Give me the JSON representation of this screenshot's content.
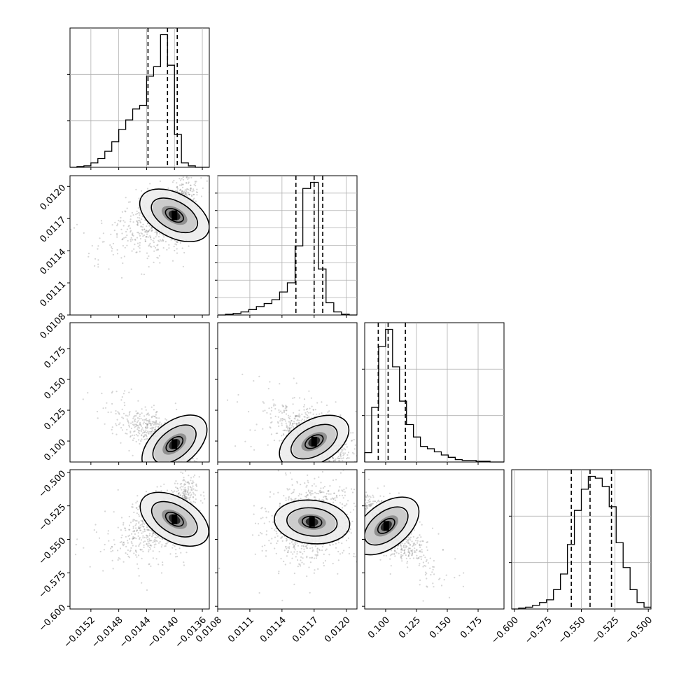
{
  "chart_data": {
    "type": "corner",
    "parameters": [
      {
        "range": [
          -0.0155,
          -0.0135
        ],
        "ticks": [
          -0.0152,
          -0.0148,
          -0.0144,
          -0.014,
          -0.0136
        ],
        "tick_labels": [
          "−0.0152",
          "−0.0148",
          "−0.0144",
          "−0.0140",
          "−0.0136"
        ],
        "quantiles": [
          -0.01438,
          -0.0141,
          -0.01396
        ]
      },
      {
        "range": [
          0.0108,
          0.0121
        ],
        "ticks": [
          0.0108,
          0.0111,
          0.0114,
          0.0117,
          0.012
        ],
        "tick_labels": [
          "0.0108",
          "0.0111",
          "0.0114",
          "0.0117",
          "0.0120"
        ],
        "quantiles": [
          0.01153,
          0.0117,
          0.01178
        ]
      },
      {
        "range": [
          0.083,
          0.196
        ],
        "ticks": [
          0.1,
          0.125,
          0.15,
          0.175
        ],
        "tick_labels": [
          "0.100",
          "0.125",
          "0.150",
          "0.175"
        ],
        "quantiles": [
          0.094,
          0.102,
          0.116
        ]
      },
      {
        "range": [
          -0.602,
          -0.498
        ],
        "ticks": [
          -0.6,
          -0.575,
          -0.55,
          -0.525,
          -0.5
        ],
        "tick_labels": [
          "−0.600",
          "−0.575",
          "−0.550",
          "−0.525",
          "−0.500"
        ],
        "quantiles": [
          -0.5575,
          -0.5435,
          -0.5275
        ]
      }
    ],
    "y_tick_labels_rows": [
      [
        "0.0108",
        "0.0111",
        "0.0114",
        "0.0117",
        "0.0120"
      ],
      [
        "0.100",
        "0.125",
        "0.150",
        "0.175"
      ],
      [
        "−0.600",
        "−0.575",
        "−0.550",
        "−0.525",
        "−0.500"
      ]
    ],
    "histograms": [
      {
        "param": 0,
        "counts": [
          0,
          1,
          2,
          6,
          12,
          22,
          35,
          52,
          65,
          80,
          85,
          125,
          138,
          182,
          140,
          45,
          6,
          2,
          0,
          0
        ],
        "bins_range": [
          -0.0155,
          -0.0135
        ]
      },
      {
        "param": 1,
        "counts": [
          0,
          1,
          2,
          4,
          7,
          11,
          15,
          20,
          30,
          42,
          90,
          165,
          173,
          60,
          16,
          4,
          1,
          0
        ],
        "bins_range": [
          0.0108,
          0.0121
        ]
      },
      {
        "param": 2,
        "counts": [
          12,
          70,
          148,
          170,
          122,
          78,
          48,
          32,
          20,
          17,
          13,
          9,
          6,
          3,
          2,
          2,
          1,
          1,
          0,
          0
        ],
        "bins_range": [
          0.083,
          0.196
        ]
      },
      {
        "param": 3,
        "counts": [
          0,
          1,
          2,
          4,
          7,
          10,
          21,
          38,
          70,
          107,
          130,
          144,
          142,
          133,
          111,
          72,
          45,
          21,
          7,
          2
        ],
        "bins_range": [
          -0.602,
          -0.498
        ]
      }
    ],
    "pairs": [
      {
        "x": 0,
        "y": 1,
        "peak": [
          -0.014,
          0.01173
        ],
        "cov": [
          [
            1,
            0.55
          ],
          [
            0.55,
            1
          ]
        ]
      },
      {
        "x": 0,
        "y": 2,
        "peak": [
          -0.014,
          0.0975
        ],
        "cov": [
          [
            1,
            -0.8
          ],
          [
            -0.8,
            1
          ]
        ]
      },
      {
        "x": 1,
        "y": 2,
        "peak": [
          0.0117,
          0.0995
        ],
        "cov": [
          [
            1,
            -0.55
          ],
          [
            -0.55,
            1
          ]
        ]
      },
      {
        "x": 0,
        "y": 3,
        "peak": [
          -0.014,
          -0.535
        ],
        "cov": [
          [
            1,
            0.6
          ],
          [
            0.6,
            1
          ]
        ]
      },
      {
        "x": 1,
        "y": 3,
        "peak": [
          0.01168,
          -0.537
        ],
        "cov": [
          [
            1,
            0.1
          ],
          [
            0.1,
            1
          ]
        ]
      },
      {
        "x": 2,
        "y": 3,
        "peak": [
          0.1005,
          -0.54
        ],
        "cov": [
          [
            1,
            -0.78
          ],
          [
            -0.78,
            1
          ]
        ]
      }
    ],
    "grid": true,
    "legend": "none"
  }
}
